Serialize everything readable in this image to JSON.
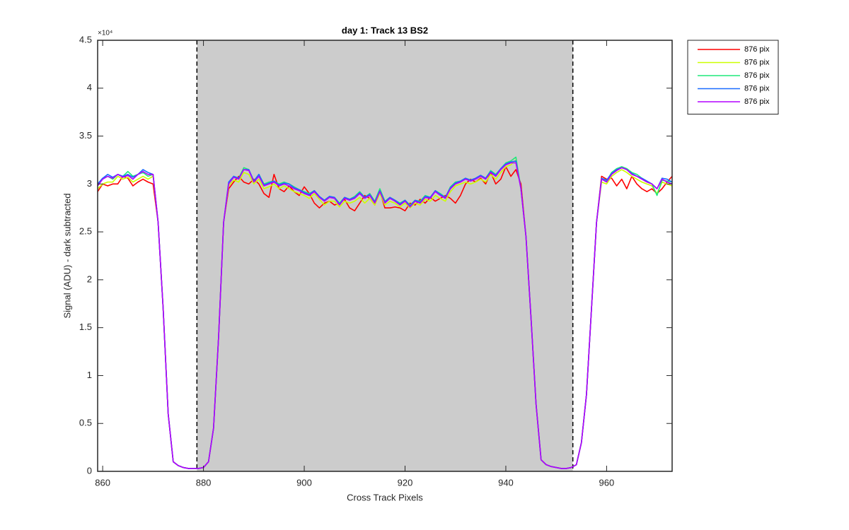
{
  "chart_data": {
    "type": "line",
    "title": "day 1: Track 13  BS2",
    "x_label": "Cross Track Pixels",
    "y_label": "Signal (ADU) - dark subtracted",
    "y_exponent": "×10⁴",
    "xlim": [
      859,
      973
    ],
    "ylim": [
      0,
      4.5
    ],
    "xticks": [
      860,
      880,
      900,
      920,
      940,
      960
    ],
    "yticks": [
      0,
      0.5,
      1,
      1.5,
      2,
      2.5,
      3,
      3.5,
      4,
      4.5
    ],
    "shaded_span": [
      878.7,
      953.3
    ],
    "shade_color": "#cccccc",
    "legend": "outside-top-right",
    "x": [
      859,
      860,
      861,
      862,
      863,
      864,
      865,
      866,
      867,
      868,
      869,
      870,
      871,
      872,
      873,
      874,
      875,
      876,
      877,
      878,
      879,
      880,
      881,
      882,
      883,
      884,
      885,
      886,
      887,
      888,
      889,
      890,
      891,
      892,
      893,
      894,
      895,
      896,
      897,
      898,
      899,
      900,
      901,
      902,
      903,
      904,
      905,
      906,
      907,
      908,
      909,
      910,
      911,
      912,
      913,
      914,
      915,
      916,
      917,
      918,
      919,
      920,
      921,
      922,
      923,
      924,
      925,
      926,
      927,
      928,
      929,
      930,
      931,
      932,
      933,
      934,
      935,
      936,
      937,
      938,
      939,
      940,
      941,
      942,
      943,
      944,
      945,
      946,
      947,
      948,
      949,
      950,
      951,
      952,
      953,
      954,
      955,
      956,
      957,
      958,
      959,
      960,
      961,
      962,
      963,
      964,
      965,
      966,
      967,
      968,
      969,
      970,
      971,
      972,
      973
    ],
    "series": [
      {
        "name": "876 pix",
        "color": "#ff0000",
        "values": [
          2.92,
          3.0,
          2.98,
          3.0,
          3.0,
          3.08,
          3.06,
          2.98,
          3.02,
          3.05,
          3.02,
          3.0,
          2.6,
          1.7,
          0.6,
          0.1,
          0.06,
          0.04,
          0.03,
          0.03,
          0.03,
          0.04,
          0.1,
          0.45,
          1.4,
          2.6,
          2.95,
          3.02,
          3.08,
          3.02,
          3.0,
          3.05,
          3.0,
          2.9,
          2.86,
          3.1,
          2.95,
          2.92,
          2.98,
          2.92,
          2.88,
          2.97,
          2.9,
          2.8,
          2.75,
          2.8,
          2.82,
          2.78,
          2.8,
          2.84,
          2.75,
          2.72,
          2.8,
          2.88,
          2.85,
          2.78,
          2.92,
          2.75,
          2.75,
          2.76,
          2.75,
          2.72,
          2.8,
          2.78,
          2.84,
          2.8,
          2.86,
          2.82,
          2.85,
          2.88,
          2.85,
          2.8,
          2.88,
          3.0,
          3.05,
          3.02,
          3.06,
          3.0,
          3.12,
          3.0,
          3.05,
          3.18,
          3.08,
          3.15,
          3.0,
          2.45,
          1.6,
          0.7,
          0.12,
          0.07,
          0.05,
          0.04,
          0.03,
          0.03,
          0.04,
          0.07,
          0.3,
          0.8,
          1.7,
          2.6,
          3.08,
          3.05,
          3.06,
          2.98,
          3.05,
          2.95,
          3.08,
          3.0,
          2.95,
          2.92,
          2.95,
          2.9,
          2.95,
          3.02,
          3.08
        ]
      },
      {
        "name": "876 pix",
        "color": "#ccff00",
        "values": [
          2.95,
          3.0,
          3.02,
          3.02,
          3.08,
          3.05,
          3.07,
          3.02,
          3.05,
          3.08,
          3.05,
          3.08,
          2.6,
          1.7,
          0.6,
          0.1,
          0.06,
          0.04,
          0.03,
          0.03,
          0.03,
          0.04,
          0.1,
          0.45,
          1.4,
          2.6,
          2.98,
          3.04,
          3.02,
          3.12,
          3.1,
          3.0,
          3.05,
          2.95,
          2.97,
          3.0,
          2.95,
          2.98,
          2.95,
          2.92,
          2.9,
          2.88,
          2.85,
          2.9,
          2.84,
          2.78,
          2.82,
          2.82,
          2.76,
          2.82,
          2.8,
          2.82,
          2.86,
          2.8,
          2.85,
          2.78,
          2.9,
          2.78,
          2.82,
          2.8,
          2.76,
          2.8,
          2.75,
          2.8,
          2.78,
          2.84,
          2.82,
          2.88,
          2.85,
          2.82,
          2.92,
          2.98,
          3.0,
          3.02,
          3.0,
          3.02,
          3.05,
          3.02,
          3.1,
          3.05,
          3.12,
          3.18,
          3.2,
          3.25,
          2.95,
          2.45,
          1.6,
          0.7,
          0.12,
          0.07,
          0.05,
          0.04,
          0.03,
          0.03,
          0.04,
          0.07,
          0.3,
          0.8,
          1.7,
          2.6,
          3.02,
          3.0,
          3.08,
          3.12,
          3.15,
          3.12,
          3.08,
          3.05,
          3.02,
          3.0,
          2.98,
          2.9,
          3.02,
          3.0,
          2.98
        ]
      },
      {
        "name": "876 pix",
        "color": "#1ee87a",
        "values": [
          3.0,
          3.06,
          3.08,
          3.05,
          3.1,
          3.08,
          3.13,
          3.08,
          3.1,
          3.12,
          3.08,
          3.1,
          2.6,
          1.7,
          0.6,
          0.1,
          0.06,
          0.04,
          0.03,
          0.03,
          0.03,
          0.04,
          0.1,
          0.45,
          1.4,
          2.6,
          3.0,
          3.08,
          3.06,
          3.17,
          3.15,
          3.03,
          3.1,
          3.0,
          3.02,
          3.03,
          3.0,
          3.02,
          3.0,
          2.97,
          2.94,
          2.92,
          2.9,
          2.93,
          2.87,
          2.83,
          2.87,
          2.86,
          2.8,
          2.86,
          2.84,
          2.87,
          2.92,
          2.86,
          2.9,
          2.82,
          2.95,
          2.82,
          2.86,
          2.83,
          2.8,
          2.83,
          2.78,
          2.83,
          2.82,
          2.88,
          2.86,
          2.93,
          2.9,
          2.86,
          2.97,
          3.02,
          3.03,
          3.06,
          3.04,
          3.06,
          3.09,
          3.06,
          3.14,
          3.1,
          3.16,
          3.22,
          3.24,
          3.28,
          2.95,
          2.45,
          1.6,
          0.7,
          0.12,
          0.07,
          0.05,
          0.04,
          0.03,
          0.03,
          0.04,
          0.07,
          0.3,
          0.8,
          1.7,
          2.6,
          3.05,
          3.03,
          3.12,
          3.16,
          3.18,
          3.16,
          3.12,
          3.1,
          3.06,
          3.03,
          3.0,
          2.88,
          3.04,
          3.03,
          3.02
        ]
      },
      {
        "name": "876 pix",
        "color": "#1a6cff",
        "values": [
          3.0,
          3.06,
          3.1,
          3.07,
          3.1,
          3.08,
          3.1,
          3.07,
          3.1,
          3.15,
          3.12,
          3.1,
          2.6,
          1.7,
          0.6,
          0.1,
          0.06,
          0.04,
          0.03,
          0.03,
          0.03,
          0.04,
          0.1,
          0.45,
          1.4,
          2.6,
          3.02,
          3.08,
          3.06,
          3.15,
          3.15,
          3.03,
          3.1,
          2.99,
          3.01,
          3.03,
          2.99,
          3.01,
          3.0,
          2.96,
          2.94,
          2.91,
          2.89,
          2.93,
          2.87,
          2.83,
          2.87,
          2.86,
          2.79,
          2.86,
          2.84,
          2.86,
          2.91,
          2.86,
          2.89,
          2.81,
          2.93,
          2.81,
          2.86,
          2.83,
          2.79,
          2.83,
          2.77,
          2.83,
          2.81,
          2.87,
          2.86,
          2.93,
          2.89,
          2.86,
          2.96,
          3.01,
          3.03,
          3.06,
          3.04,
          3.06,
          3.09,
          3.06,
          3.13,
          3.09,
          3.16,
          3.21,
          3.23,
          3.24,
          2.95,
          2.45,
          1.6,
          0.7,
          0.12,
          0.07,
          0.05,
          0.04,
          0.03,
          0.03,
          0.04,
          0.07,
          0.3,
          0.8,
          1.7,
          2.6,
          3.06,
          3.04,
          3.11,
          3.15,
          3.17,
          3.15,
          3.11,
          3.08,
          3.06,
          3.03,
          3.0,
          2.95,
          3.06,
          3.05,
          3.02
        ]
      },
      {
        "name": "876 pix",
        "color": "#b400ff",
        "values": [
          2.98,
          3.05,
          3.08,
          3.06,
          3.1,
          3.07,
          3.09,
          3.05,
          3.1,
          3.13,
          3.1,
          3.1,
          2.6,
          1.7,
          0.6,
          0.1,
          0.06,
          0.04,
          0.03,
          0.03,
          0.03,
          0.04,
          0.1,
          0.45,
          1.4,
          2.6,
          3.0,
          3.07,
          3.05,
          3.15,
          3.14,
          3.02,
          3.08,
          2.98,
          3.0,
          3.02,
          2.98,
          3.0,
          2.98,
          2.95,
          2.93,
          2.9,
          2.88,
          2.92,
          2.86,
          2.82,
          2.86,
          2.85,
          2.78,
          2.85,
          2.83,
          2.85,
          2.9,
          2.85,
          2.88,
          2.8,
          2.92,
          2.8,
          2.85,
          2.82,
          2.78,
          2.82,
          2.76,
          2.82,
          2.8,
          2.86,
          2.85,
          2.92,
          2.88,
          2.85,
          2.95,
          3.0,
          3.02,
          3.05,
          3.03,
          3.05,
          3.08,
          3.05,
          3.12,
          3.08,
          3.15,
          3.2,
          3.22,
          3.22,
          2.95,
          2.45,
          1.6,
          0.7,
          0.12,
          0.07,
          0.05,
          0.04,
          0.03,
          0.03,
          0.04,
          0.07,
          0.3,
          0.8,
          1.7,
          2.6,
          3.05,
          3.02,
          3.1,
          3.14,
          3.17,
          3.15,
          3.1,
          3.08,
          3.05,
          3.02,
          3.0,
          2.95,
          3.05,
          3.02,
          3.0
        ]
      }
    ]
  }
}
